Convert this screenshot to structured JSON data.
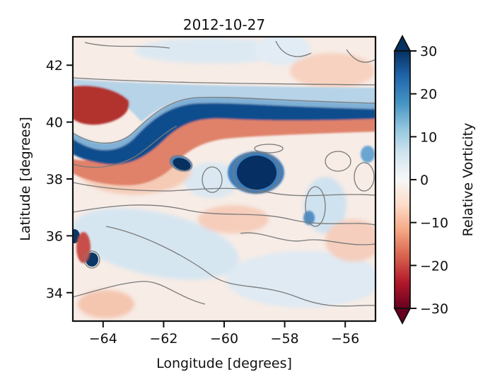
{
  "chart_data": {
    "type": "heatmap",
    "title": "2012-10-27",
    "xlabel": "Longitude [degrees]",
    "ylabel": "Latitude [degrees]",
    "xlim": [
      -65,
      -55
    ],
    "ylim": [
      33,
      43
    ],
    "xticks": [
      -64,
      -62,
      -60,
      -58,
      -56
    ],
    "yticks": [
      34,
      36,
      38,
      40,
      42
    ],
    "colorbar": {
      "label": "Relative Vorticity",
      "range": [
        -30,
        30
      ],
      "ticks": [
        -30,
        -20,
        -10,
        0,
        10,
        20,
        30
      ],
      "extend": "both",
      "colormap": "RdBu",
      "colors": [
        "#67001f",
        "#b2182b",
        "#d6604d",
        "#f4a582",
        "#fddbc7",
        "#f7f7f7",
        "#d1e5f0",
        "#92c5de",
        "#4393c3",
        "#2166ac",
        "#053061"
      ]
    },
    "features": [
      {
        "name": "positive jet band",
        "sign": "positive",
        "value": 28
      },
      {
        "name": "negative jet flank",
        "sign": "negative",
        "value": -24
      },
      {
        "name": "negative jet flank north-west",
        "sign": "negative",
        "value": -25
      },
      {
        "name": "positive ring",
        "sign": "positive",
        "value": 30
      },
      {
        "name": "cold-core ring",
        "sign": "positive",
        "value": 30
      },
      {
        "name": "small positive eddy",
        "sign": "positive",
        "value": 30
      },
      {
        "name": "positive eddy south-west",
        "sign": "positive",
        "value": 28
      },
      {
        "name": "positive eddy west edge",
        "sign": "positive",
        "value": 30
      },
      {
        "name": "negative patch south-west",
        "sign": "negative",
        "value": -22
      }
    ],
    "contour_level": 0
  }
}
